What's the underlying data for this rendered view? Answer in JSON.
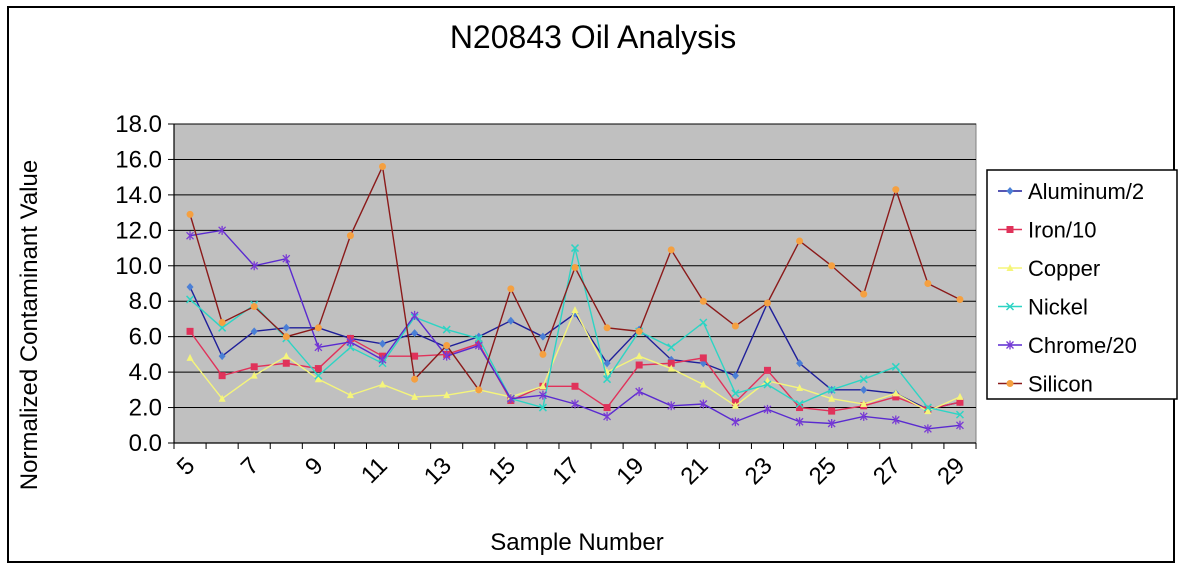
{
  "chart_data": {
    "type": "line",
    "title": "N20843 Oil Analysis",
    "xlabel": "Sample Number",
    "ylabel": "Normalized Contaminant Value",
    "ylim": [
      0,
      18
    ],
    "yticks": [
      "0.0",
      "2.0",
      "4.0",
      "6.0",
      "8.0",
      "10.0",
      "12.0",
      "14.0",
      "16.0",
      "18.0"
    ],
    "x": [
      5,
      6,
      7,
      8,
      9,
      10,
      11,
      12,
      13,
      14,
      15,
      16,
      17,
      18,
      19,
      20,
      21,
      22,
      23,
      24,
      25,
      26,
      27,
      28,
      29
    ],
    "xticks": [
      "5",
      "7",
      "9",
      "11",
      "13",
      "15",
      "17",
      "19",
      "21",
      "23",
      "25",
      "27",
      "29"
    ],
    "grid": true,
    "legend_position": "right",
    "plot_background": "#c0c0c0",
    "series": [
      {
        "name": "Aluminum/2",
        "color": "#4a7fd6",
        "line_color": "#1f1f9a",
        "marker": "diamond",
        "values": [
          8.8,
          4.9,
          6.3,
          6.5,
          6.5,
          5.9,
          5.6,
          6.2,
          5.4,
          6.0,
          6.9,
          6.0,
          7.3,
          4.5,
          6.4,
          4.7,
          4.5,
          3.8,
          7.9,
          4.5,
          3.0,
          3.0,
          2.8,
          1.9,
          2.3
        ]
      },
      {
        "name": "Iron/10",
        "color": "#e0325a",
        "line_color": "#e0325a",
        "marker": "square",
        "values": [
          6.3,
          3.8,
          4.3,
          4.5,
          4.2,
          5.9,
          4.9,
          4.9,
          5.0,
          5.6,
          2.4,
          3.2,
          3.2,
          2.0,
          4.4,
          4.5,
          4.8,
          2.3,
          4.1,
          2.0,
          1.8,
          2.1,
          2.6,
          1.9,
          2.3
        ]
      },
      {
        "name": "Copper",
        "color": "#f5f57a",
        "line_color": "#f5f57a",
        "marker": "triangle",
        "values": [
          4.8,
          2.5,
          3.8,
          4.9,
          3.6,
          2.7,
          3.3,
          2.6,
          2.7,
          3.0,
          2.6,
          3.2,
          7.5,
          4.0,
          4.9,
          4.2,
          3.3,
          2.1,
          3.5,
          3.1,
          2.5,
          2.2,
          2.8,
          1.8,
          2.6
        ]
      },
      {
        "name": "Nickel",
        "color": "#2dd4c4",
        "line_color": "#2dd4c4",
        "marker": "x",
        "values": [
          8.1,
          6.5,
          7.8,
          5.9,
          3.8,
          5.4,
          4.5,
          7.1,
          6.4,
          5.9,
          2.5,
          2.0,
          11.0,
          3.6,
          6.3,
          5.4,
          6.8,
          2.8,
          3.3,
          2.2,
          3.0,
          3.6,
          4.3,
          2.0,
          1.6
        ]
      },
      {
        "name": "Chrome/20",
        "color": "#7a3ad6",
        "line_color": "#5a2ad0",
        "marker": "star",
        "values": [
          11.7,
          12.0,
          10.0,
          10.4,
          5.4,
          5.7,
          4.7,
          7.2,
          4.9,
          5.5,
          2.5,
          2.7,
          2.2,
          1.5,
          2.9,
          2.1,
          2.2,
          1.2,
          1.9,
          1.2,
          1.1,
          1.5,
          1.3,
          0.8,
          1.0
        ]
      },
      {
        "name": "Silicon",
        "color": "#f5a040",
        "line_color": "#8b1a1a",
        "marker": "circle",
        "values": [
          12.9,
          6.8,
          7.7,
          6.0,
          6.5,
          11.7,
          15.6,
          3.6,
          5.5,
          3.0,
          8.7,
          5.0,
          9.9,
          6.5,
          6.3,
          10.9,
          8.0,
          6.6,
          7.9,
          11.4,
          10.0,
          8.4,
          14.3,
          9.0,
          8.1
        ]
      }
    ]
  }
}
